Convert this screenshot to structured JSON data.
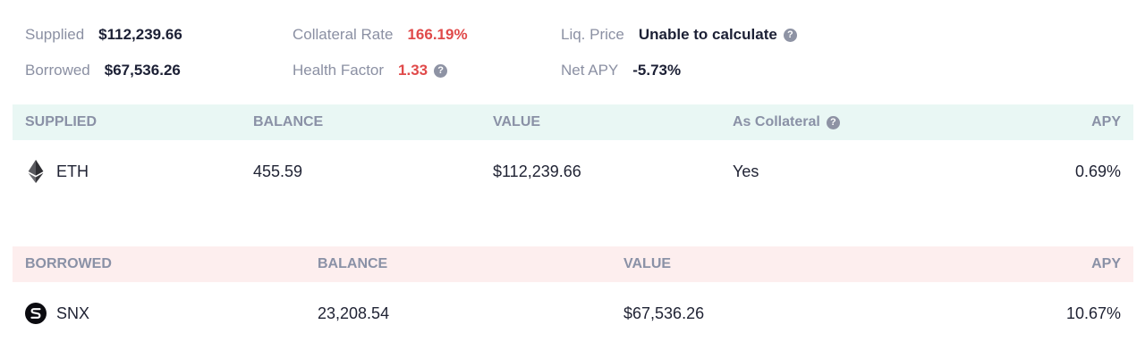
{
  "summary": {
    "supplied_label": "Supplied",
    "supplied_value": "$112,239.66",
    "borrowed_label": "Borrowed",
    "borrowed_value": "$67,536.26",
    "collateral_rate_label": "Collateral Rate",
    "collateral_rate_value": "166.19%",
    "health_factor_label": "Health Factor",
    "health_factor_value": "1.33",
    "liq_price_label": "Liq. Price",
    "liq_price_value": "Unable to calculate",
    "net_apy_label": "Net APY",
    "net_apy_value": "-5.73%",
    "help_glyph": "?"
  },
  "supplied_table": {
    "headers": {
      "asset": "SUPPLIED",
      "balance": "BALANCE",
      "value": "VALUE",
      "collateral": "As Collateral",
      "apy": "APY"
    },
    "rows": [
      {
        "icon": "ethereum-icon",
        "asset": "ETH",
        "balance": "455.59",
        "value": "$112,239.66",
        "collateral": "Yes",
        "apy": "0.69%"
      }
    ]
  },
  "borrowed_table": {
    "headers": {
      "asset": "BORROWED",
      "balance": "BALANCE",
      "value": "VALUE",
      "apy": "APY"
    },
    "rows": [
      {
        "icon": "synthetix-icon",
        "asset": "SNX",
        "balance": "23,208.54",
        "value": "$67,536.26",
        "apy": "10.67%"
      }
    ]
  },
  "colors": {
    "supplied_header_bg": "#e9f7f4",
    "borrowed_header_bg": "#fdeeee",
    "warning_red": "#e04a4a",
    "muted_label": "#8b90a3"
  }
}
